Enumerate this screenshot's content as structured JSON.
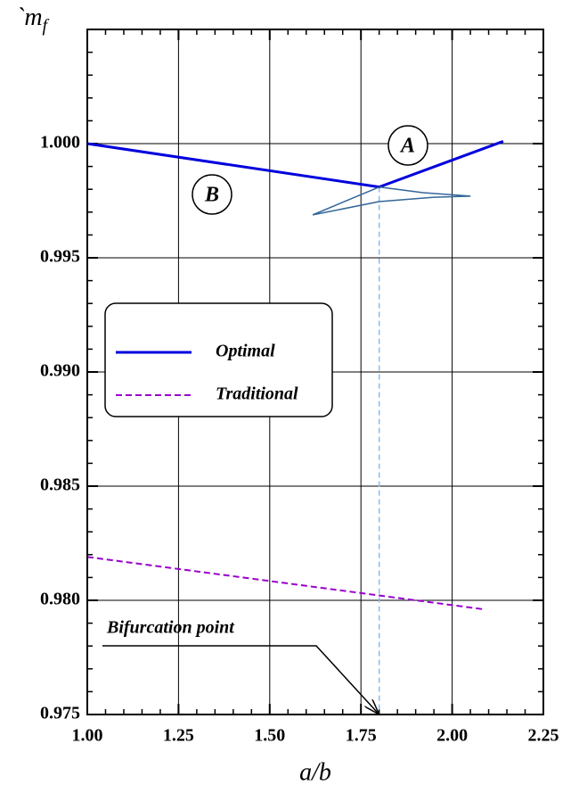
{
  "chart_data": {
    "type": "line",
    "xlabel": "a/b",
    "ylabel": "`m",
    "ylabel_sub": "f",
    "xlim": [
      1.0,
      2.25
    ],
    "ylim": [
      0.975,
      1.005
    ],
    "xticks": [
      {
        "value": 1.0,
        "label": "1.00"
      },
      1.25,
      {
        "value": 1.5,
        "label": "1.50"
      },
      1.75,
      {
        "value": 2.0,
        "label": "2.00"
      },
      2.25
    ],
    "yticks": [
      0.975,
      {
        "value": 0.98,
        "label": "0.980"
      },
      0.985,
      {
        "value": 0.99,
        "label": "0.990"
      },
      0.995,
      {
        "value": 1.0,
        "label": "1.000"
      }
    ],
    "grid": true,
    "legend": "left",
    "series": [
      {
        "name": "Optimal",
        "color": "#0000dd",
        "dash": false,
        "width": 3,
        "x": [
          1.0,
          1.8,
          2.14
        ],
        "values": [
          1.0,
          0.9981,
          1.0001
        ]
      },
      {
        "name": "Traditional",
        "color": "#9900cc",
        "dash": true,
        "width": 2,
        "x": [
          1.0,
          2.09
        ],
        "values": [
          0.9819,
          0.9796
        ]
      },
      {
        "color": "#336699",
        "dash": false,
        "width": 1.5,
        "x": [
          1.8,
          1.92,
          2.05
        ],
        "values": [
          0.9981,
          0.99785,
          0.9977
        ]
      },
      {
        "color": "#336699",
        "dash": false,
        "width": 1.5,
        "x": [
          1.8,
          1.618
        ],
        "values": [
          0.9981,
          0.99688
        ]
      },
      {
        "color": "#336699",
        "dash": false,
        "width": 1.5,
        "x": [
          1.618,
          1.8,
          1.95,
          2.05
        ],
        "values": [
          0.99688,
          0.99746,
          0.99765,
          0.9977
        ]
      }
    ],
    "annotations": [
      {
        "text": "Bifurcation point",
        "x": 1.8,
        "y": 0.975
      },
      {
        "text": "A"
      },
      {
        "text": "B"
      }
    ]
  }
}
